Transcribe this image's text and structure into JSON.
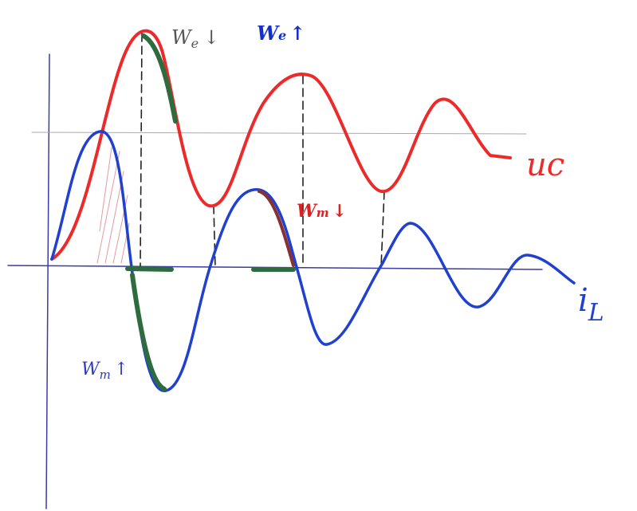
{
  "annotations": [
    {
      "symbol": "W",
      "subscript": "e",
      "arrow": "↓"
    },
    {
      "symbol": "W",
      "subscript": "e",
      "arrow": "↑"
    },
    {
      "symbol": "W",
      "subscript": "m",
      "arrow": "↓"
    },
    {
      "symbol": "W",
      "subscript": "m",
      "arrow": "↑"
    }
  ],
  "curves": [
    {
      "symbol": "u",
      "subscript": "c"
    },
    {
      "symbol": "i",
      "subscript": "L"
    }
  ]
}
